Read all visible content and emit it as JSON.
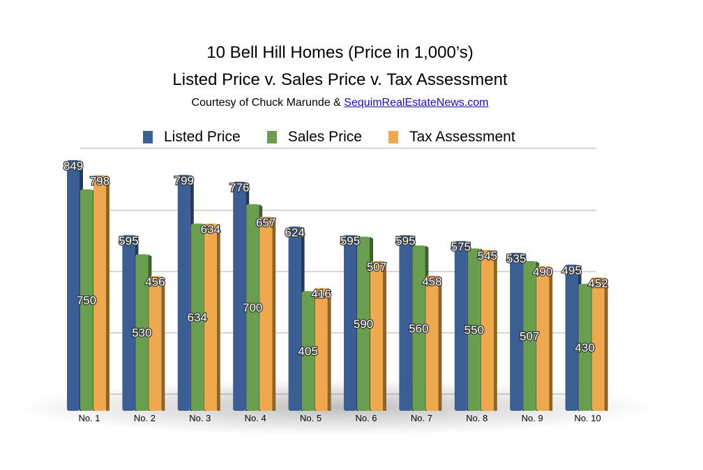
{
  "chart_data": {
    "type": "bar",
    "title": "10 Bell Hill Homes (Price in 1,000’s)",
    "subtitle": "Listed Price v. Sales Price v. Tax Assessment",
    "credit_prefix": "Courtesy of Chuck Marunde & ",
    "credit_link": "SequimRealEstateNews.com",
    "categories": [
      "No. 1",
      "No. 2",
      "No. 3",
      "No. 4",
      "No. 5",
      "No. 6",
      "No. 7",
      "No. 8",
      "No. 9",
      "No. 10"
    ],
    "series": [
      {
        "name": "Listed Price",
        "color": "#3a5f94",
        "values": [
          849,
          595,
          799,
          776,
          624,
          595,
          595,
          575,
          535,
          495
        ]
      },
      {
        "name": "Sales Price",
        "color": "#6a9e4f",
        "values": [
          750,
          530,
          634,
          700,
          405,
          590,
          560,
          550,
          507,
          430
        ]
      },
      {
        "name": "Tax Assessment",
        "color": "#f0a84c",
        "values": [
          798,
          456,
          634,
          657,
          416,
          507,
          458,
          545,
          490,
          452
        ]
      }
    ],
    "legend_position": "top",
    "grid": true,
    "style": "3d-bar",
    "ylim": [
      0,
      850
    ]
  }
}
